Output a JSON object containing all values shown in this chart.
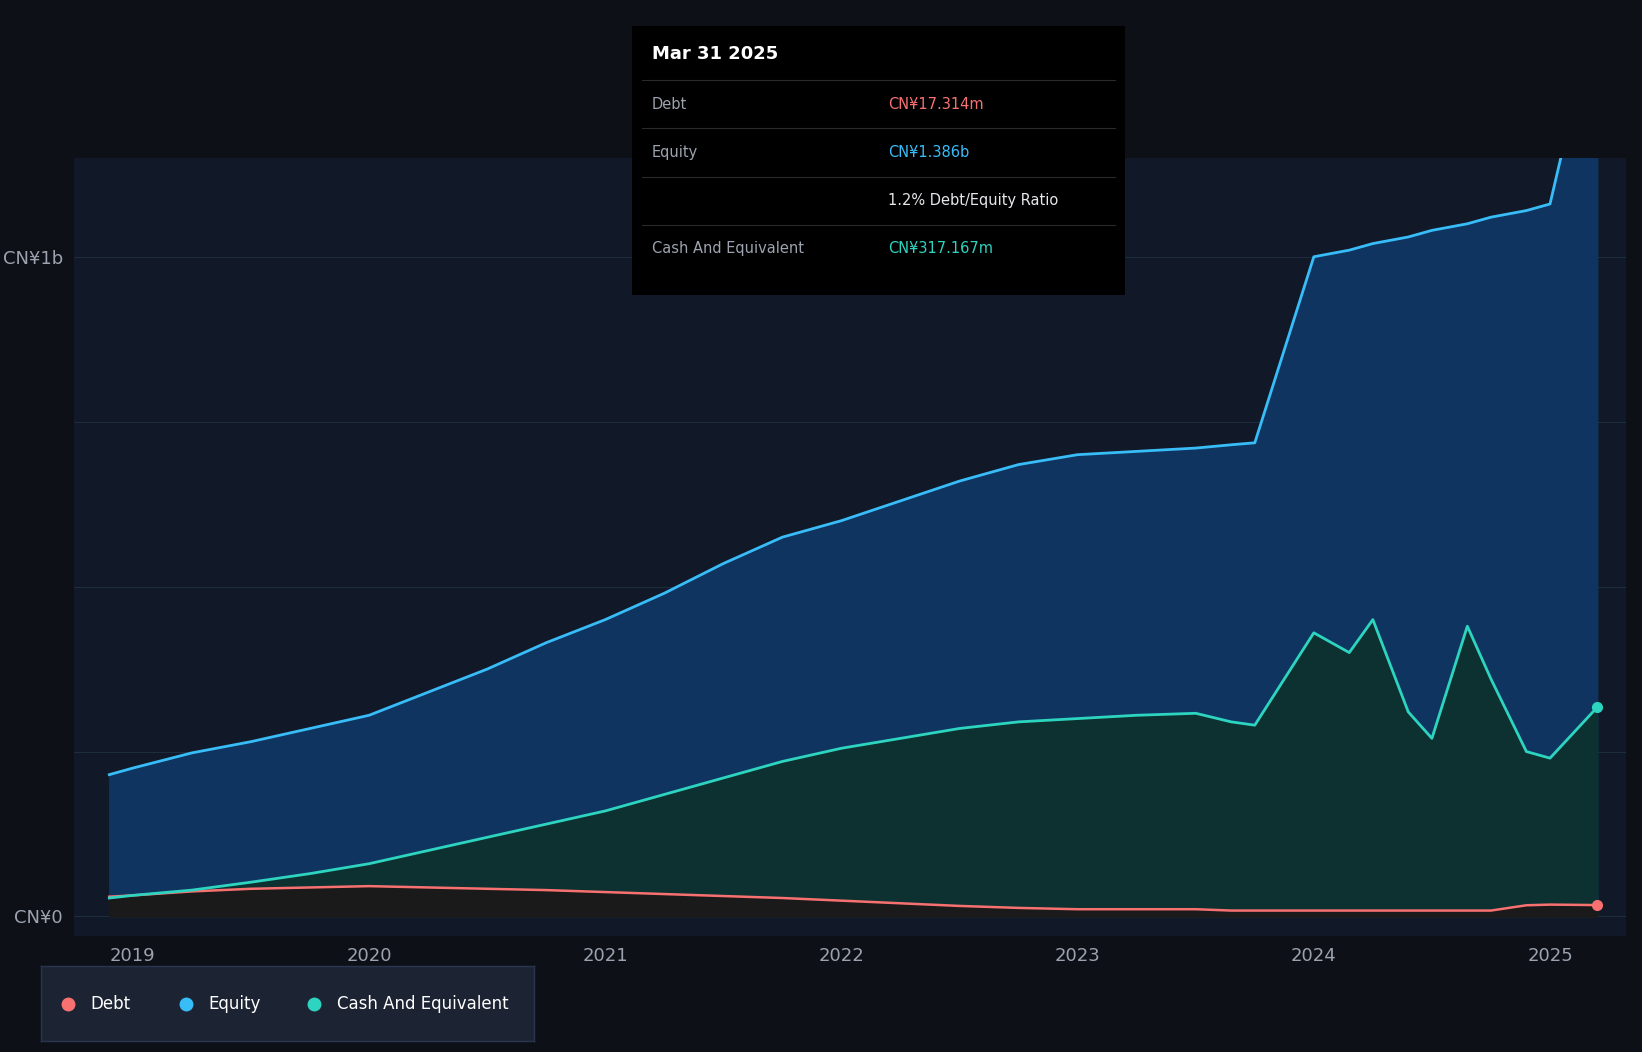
{
  "bg_color": "#0d1117",
  "plot_bg_color": "#111827",
  "grid_color": "#1e2d3d",
  "ylabel_color": "#9ca3af",
  "xlabel_color": "#9ca3af",
  "equity_color": "#38bdf8",
  "equity_fill": "#0f3460",
  "debt_color": "#f87171",
  "debt_fill": "#1f1515",
  "cash_color": "#2dd4bf",
  "cash_fill": "#0d3030",
  "ylim": [
    -30000000,
    1150000000
  ],
  "yticks": [
    0,
    250000000,
    500000000,
    750000000,
    1000000000
  ],
  "ytick_labels": [
    "CN¥0",
    "",
    "",
    "",
    "CN¥1b"
  ],
  "xtick_labels": [
    "2019",
    "2020",
    "2021",
    "2022",
    "2023",
    "2024",
    "2025"
  ],
  "tooltip_title": "Mar 31 2025",
  "tooltip_rows": [
    [
      "Debt",
      "CN¥17.314m",
      "#f87171"
    ],
    [
      "Equity",
      "CN¥1.386b",
      "#38bdf8"
    ],
    [
      "",
      "1.2% Debt/Equity Ratio",
      "#e5e7eb"
    ],
    [
      "Cash And Equivalent",
      "CN¥317.167m",
      "#2dd4bf"
    ]
  ],
  "legend_items": [
    {
      "label": "Debt",
      "color": "#f87171"
    },
    {
      "label": "Equity",
      "color": "#38bdf8"
    },
    {
      "label": "Cash And Equivalent",
      "color": "#2dd4bf"
    }
  ],
  "time_points": [
    2018.9,
    2019.0,
    2019.25,
    2019.5,
    2019.75,
    2020.0,
    2020.25,
    2020.5,
    2020.75,
    2021.0,
    2021.25,
    2021.5,
    2021.75,
    2022.0,
    2022.25,
    2022.5,
    2022.75,
    2023.0,
    2023.25,
    2023.5,
    2023.65,
    2023.75,
    2024.0,
    2024.15,
    2024.25,
    2024.4,
    2024.5,
    2024.65,
    2024.75,
    2024.9,
    2025.0,
    2025.2
  ],
  "equity_values": [
    215000000,
    225000000,
    248000000,
    265000000,
    285000000,
    305000000,
    340000000,
    375000000,
    415000000,
    450000000,
    490000000,
    535000000,
    575000000,
    600000000,
    630000000,
    660000000,
    685000000,
    700000000,
    705000000,
    710000000,
    715000000,
    718000000,
    1000000000,
    1010000000,
    1020000000,
    1030000000,
    1040000000,
    1050000000,
    1060000000,
    1070000000,
    1080000000,
    1386000000
  ],
  "debt_values": [
    30000000,
    32000000,
    38000000,
    42000000,
    44000000,
    46000000,
    44000000,
    42000000,
    40000000,
    37000000,
    34000000,
    31000000,
    28000000,
    24000000,
    20000000,
    16000000,
    13000000,
    11000000,
    11000000,
    11000000,
    9000000,
    9000000,
    9000000,
    9000000,
    9000000,
    9000000,
    9000000,
    9000000,
    9000000,
    17000000,
    18000000,
    17314000
  ],
  "cash_values": [
    28000000,
    32000000,
    40000000,
    52000000,
    65000000,
    80000000,
    100000000,
    120000000,
    140000000,
    160000000,
    185000000,
    210000000,
    235000000,
    255000000,
    270000000,
    285000000,
    295000000,
    300000000,
    305000000,
    308000000,
    295000000,
    290000000,
    430000000,
    400000000,
    450000000,
    310000000,
    270000000,
    440000000,
    360000000,
    250000000,
    240000000,
    317167000
  ]
}
